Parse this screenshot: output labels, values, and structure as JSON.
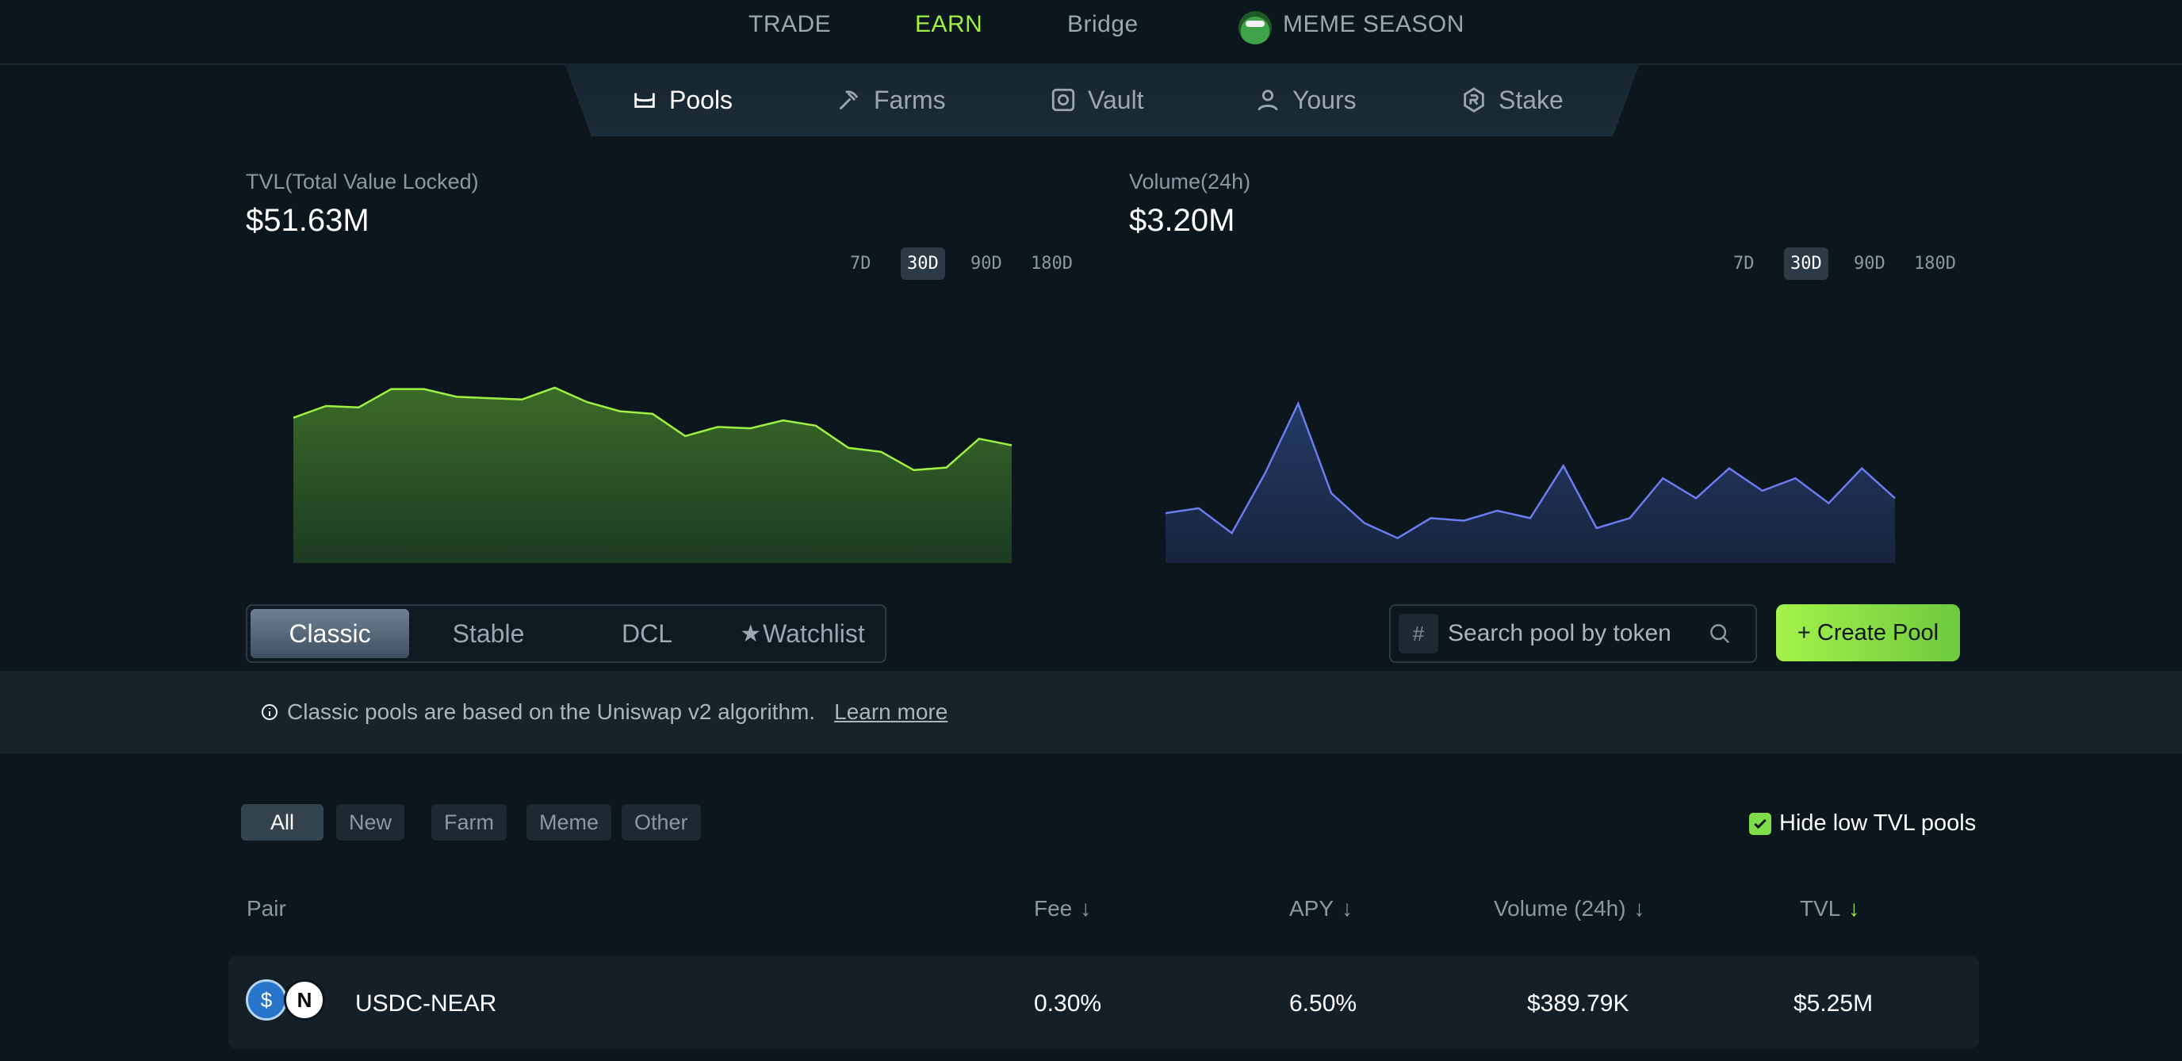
{
  "top_nav": {
    "items": [
      {
        "label": "TRADE",
        "active": false
      },
      {
        "label": "EARN",
        "active": true
      },
      {
        "label": "Bridge",
        "active": false
      },
      {
        "label": "MEME SEASON",
        "active": false,
        "icon": "meme-frog-icon"
      }
    ]
  },
  "sub_nav": {
    "items": [
      {
        "label": "Pools",
        "icon": "pool-icon",
        "active": true
      },
      {
        "label": "Farms",
        "icon": "pickaxe-icon",
        "active": false
      },
      {
        "label": "Vault",
        "icon": "vault-icon",
        "active": false
      },
      {
        "label": "Yours",
        "icon": "user-icon",
        "active": false
      },
      {
        "label": "Stake",
        "icon": "stake-icon",
        "active": false
      }
    ]
  },
  "tvl": {
    "label": "TVL(Total Value Locked)",
    "value": "$51.63M",
    "ranges": [
      "7D",
      "30D",
      "90D",
      "180D"
    ],
    "active_range": "30D"
  },
  "volume": {
    "label": "Volume(24h)",
    "value": "$3.20M",
    "ranges": [
      "7D",
      "30D",
      "90D",
      "180D"
    ],
    "active_range": "30D"
  },
  "chart_data": [
    {
      "type": "area",
      "title": "",
      "xlabel": "",
      "ylabel": "",
      "color": "#9ef042",
      "series": [
        {
          "values": [
            51.1,
            52.0,
            51.9,
            53.3,
            53.3,
            52.7,
            52.6,
            52.5,
            53.4,
            52.3,
            51.6,
            51.4,
            49.7,
            50.4,
            50.3,
            50.9,
            50.5,
            48.8,
            48.5,
            47.1,
            47.3,
            49.5,
            49.0
          ]
        }
      ]
    },
    {
      "type": "area",
      "title": "",
      "xlabel": "",
      "ylabel": "",
      "color": "#6a7cf0",
      "series": [
        {
          "values": [
            2.0,
            2.2,
            1.2,
            3.6,
            6.4,
            2.8,
            1.6,
            1.0,
            1.8,
            1.7,
            2.1,
            1.8,
            3.9,
            1.4,
            1.8,
            3.4,
            2.6,
            3.8,
            2.9,
            3.4,
            2.4,
            3.8,
            2.6
          ]
        }
      ]
    }
  ],
  "pool_tabs": {
    "items": [
      {
        "label": "Classic",
        "active": true
      },
      {
        "label": "Stable",
        "active": false
      },
      {
        "label": "DCL",
        "active": false
      },
      {
        "label": "Watchlist",
        "active": false,
        "icon": "star-icon"
      }
    ]
  },
  "search": {
    "placeholder": "Search pool by token",
    "value": "",
    "hash_symbol": "#"
  },
  "create_pool": {
    "label": "+ Create Pool"
  },
  "info": {
    "text": "Classic pools are based on the Uniswap v2 algorithm.",
    "link": "Learn more"
  },
  "filters": {
    "items": [
      {
        "label": "All",
        "active": true
      },
      {
        "label": "New",
        "active": false
      },
      {
        "label": "Farm",
        "active": false
      },
      {
        "label": "Meme",
        "active": false
      },
      {
        "label": "Other",
        "active": false
      }
    ],
    "hide_low_tvl": {
      "label": "Hide low TVL pools",
      "checked": true
    }
  },
  "table": {
    "columns": [
      {
        "label": "Pair",
        "sortable": false
      },
      {
        "label": "Fee",
        "sortable": true,
        "arrow": "↓"
      },
      {
        "label": "APY",
        "sortable": true,
        "arrow": "↓"
      },
      {
        "label": "Volume (24h)",
        "sortable": true,
        "arrow": "↓"
      },
      {
        "label": "TVL",
        "sortable": true,
        "arrow": "↓",
        "sorted": true
      }
    ],
    "rows": [
      {
        "pair": "USDC-NEAR",
        "fee": "0.30%",
        "apy": "6.50%",
        "volume": "$389.79K",
        "tvl": "$5.25M",
        "tokens": [
          "usdc-token-icon",
          "near-token-icon"
        ]
      }
    ]
  },
  "colors": {
    "accent": "#9ef042",
    "background": "#0b161d",
    "volume_line": "#6a7cf0"
  }
}
